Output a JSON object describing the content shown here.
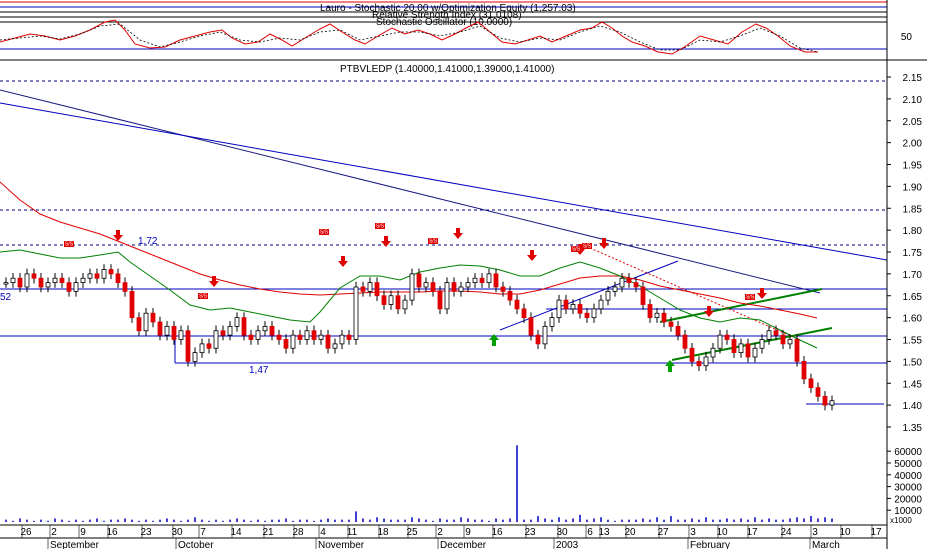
{
  "colors": {
    "background": "#ffffff",
    "grid": "#000000",
    "blue": "#0000c0",
    "red": "#e00000",
    "green": "#00a000",
    "dark_green": "#008000",
    "navy": "#1a1a80",
    "black": "#000000"
  },
  "header": {
    "line1": "Lauro - Stochastic 20.00 w/Optimization Equity (1,257.03)",
    "line2": "Relative Strength Index (31.0108)",
    "line3": "Stochastic Oscillator (10.0000)"
  },
  "indicator_axis": {
    "label_50": "50"
  },
  "price_title": "PTBVLEDP (1.40000,1.41000,1.39000,1.41000)",
  "level_labels": {
    "left_1_52": "52",
    "label_1_72": "1.72",
    "label_1_47": "1,47"
  },
  "price_axis_ticks": [
    "2.15",
    "2.10",
    "2.05",
    "2.00",
    "1.95",
    "1.90",
    "1.85",
    "1.80",
    "1.75",
    "1.70",
    "1.65",
    "1.60",
    "1.55",
    "1.50",
    "1.45",
    "1.40",
    "1.35"
  ],
  "volume_axis_ticks": [
    "60000",
    "50000",
    "40000",
    "30000",
    "20000",
    "10000"
  ],
  "volume_multiplier": "x1000",
  "date_axis": {
    "day_ticks": [
      "26",
      "2",
      "9",
      "16",
      "23",
      "30",
      "7",
      "14",
      "21",
      "28",
      "4",
      "11",
      "18",
      "25",
      "2",
      "9",
      "16",
      "23",
      "30",
      "6",
      "13",
      "20",
      "27",
      "3",
      "10",
      "17",
      "24",
      "3",
      "10",
      "17"
    ],
    "months": [
      "September",
      "October",
      "November",
      "December",
      "2003",
      "February",
      "March"
    ]
  },
  "annotations": {
    "signal_label": "S/S"
  },
  "chart_data": {
    "type": "candlestick",
    "title": "PTBVLEDP (1.40000,1.41000,1.39000,1.41000)",
    "ohlc_last": {
      "open": 1.4,
      "high": 1.41,
      "low": 1.39,
      "close": 1.41
    },
    "y_range": [
      1.33,
      2.17
    ],
    "volume_range_thousands": [
      0,
      70
    ],
    "horizontal_levels": [
      2.13,
      1.8,
      1.72,
      1.62,
      1.58,
      1.52,
      1.47,
      1.39
    ],
    "close": [
      1.68,
      1.69,
      1.67,
      1.7,
      1.69,
      1.67,
      1.68,
      1.69,
      1.68,
      1.66,
      1.68,
      1.69,
      1.7,
      1.69,
      1.71,
      1.7,
      1.68,
      1.66,
      1.6,
      1.57,
      1.61,
      1.59,
      1.56,
      1.58,
      1.55,
      1.57,
      1.5,
      1.52,
      1.54,
      1.53,
      1.57,
      1.56,
      1.58,
      1.6,
      1.56,
      1.55,
      1.57,
      1.58,
      1.56,
      1.55,
      1.53,
      1.56,
      1.55,
      1.57,
      1.55,
      1.56,
      1.53,
      1.54,
      1.56,
      1.55,
      1.67,
      1.66,
      1.68,
      1.65,
      1.63,
      1.65,
      1.62,
      1.64,
      1.7,
      1.67,
      1.68,
      1.66,
      1.62,
      1.68,
      1.66,
      1.67,
      1.68,
      1.69,
      1.68,
      1.7,
      1.67,
      1.66,
      1.64,
      1.62,
      1.6,
      1.56,
      1.54,
      1.58,
      1.6,
      1.64,
      1.62,
      1.63,
      1.61,
      1.6,
      1.62,
      1.64,
      1.66,
      1.67,
      1.69,
      1.68,
      1.67,
      1.63,
      1.6,
      1.61,
      1.59,
      1.58,
      1.56,
      1.53,
      1.5,
      1.49,
      1.51,
      1.53,
      1.56,
      1.55,
      1.52,
      1.54,
      1.51,
      1.53,
      1.55,
      1.57,
      1.56,
      1.54,
      1.55,
      1.5,
      1.46,
      1.44,
      1.42,
      1.4,
      1.41
    ],
    "volume": [
      2,
      1,
      3,
      2,
      1,
      2,
      1,
      3,
      2,
      1,
      2,
      1,
      2,
      3,
      1,
      2,
      2,
      3,
      2,
      1,
      2,
      1,
      2,
      3,
      2,
      1,
      2,
      4,
      2,
      1,
      2,
      1,
      2,
      3,
      2,
      1,
      2,
      1,
      2,
      2,
      3,
      1,
      2,
      2,
      1,
      2,
      3,
      2,
      2,
      2,
      9,
      3,
      2,
      4,
      3,
      2,
      2,
      2,
      4,
      3,
      2,
      1,
      3,
      2,
      2,
      4,
      3,
      2,
      2,
      1,
      3,
      2,
      3,
      65,
      2,
      2,
      5,
      3,
      2,
      4,
      2,
      3,
      6,
      2,
      3,
      4,
      2,
      1,
      2,
      2,
      2,
      3,
      2,
      4,
      2,
      5,
      2,
      2,
      3,
      2,
      4,
      2,
      2,
      3,
      2,
      3,
      2,
      4,
      2,
      3,
      2,
      2,
      3,
      4,
      3,
      5,
      3,
      4,
      3
    ]
  }
}
